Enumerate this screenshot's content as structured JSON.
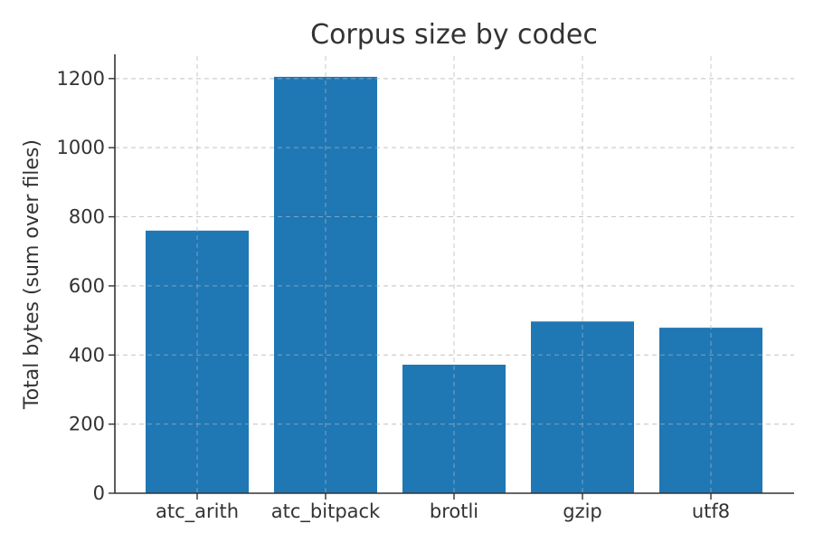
{
  "chart_data": {
    "type": "bar",
    "title": "Corpus size by codec",
    "xlabel": "",
    "ylabel": "Total bytes (sum over files)",
    "categories": [
      "atc_arith",
      "atc_bitpack",
      "brotli",
      "gzip",
      "utf8"
    ],
    "values": [
      760,
      1205,
      372,
      497,
      479
    ],
    "ylim": [
      0,
      1265
    ],
    "yticks": [
      0,
      200,
      400,
      600,
      800,
      1000,
      1200
    ],
    "grid": true,
    "bar_color": "#1f77b4"
  }
}
